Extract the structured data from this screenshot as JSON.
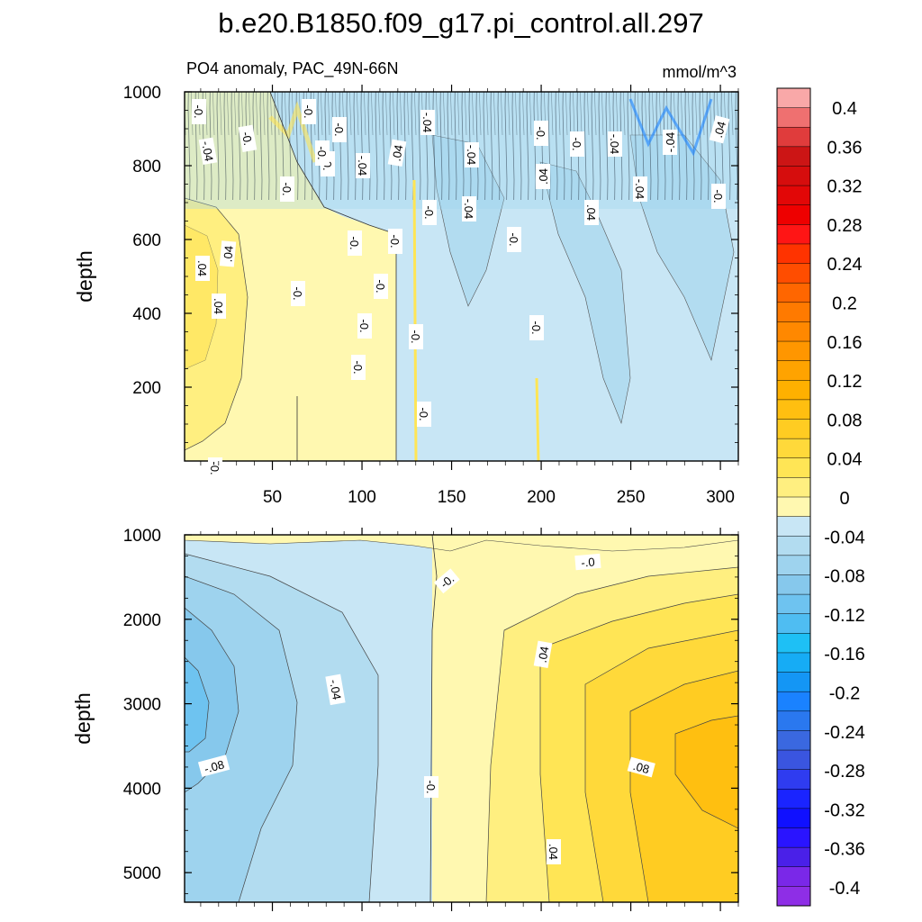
{
  "chart_data": {
    "type": "contour",
    "title": "b.e20.B1850.f09_g17.pi_control.all.297",
    "subtitle_left": "PO4 anomaly, PAC_49N-66N",
    "units": "mmol/m^3",
    "colorbar": {
      "levels": [
        -0.4,
        -0.38,
        -0.36,
        -0.34,
        -0.32,
        -0.3,
        -0.28,
        -0.26,
        -0.24,
        -0.22,
        -0.2,
        -0.18,
        -0.16,
        -0.14,
        -0.12,
        -0.1,
        -0.08,
        -0.06,
        -0.04,
        -0.02,
        0,
        0.02,
        0.04,
        0.06,
        0.08,
        0.1,
        0.12,
        0.14,
        0.16,
        0.18,
        0.2,
        0.22,
        0.24,
        0.26,
        0.28,
        0.3,
        0.32,
        0.34,
        0.36,
        0.38,
        0.4
      ],
      "tick_labels": [
        "0.4",
        "0.36",
        "0.32",
        "0.28",
        "0.24",
        "0.2",
        "0.16",
        "0.12",
        "0.08",
        "0.04",
        "0",
        "-0.04",
        "-0.08",
        "-0.12",
        "-0.16",
        "-0.2",
        "-0.24",
        "-0.28",
        "-0.32",
        "-0.36",
        "-0.4"
      ],
      "colors": [
        "#f9a8a8",
        "#ef7070",
        "#e03c3c",
        "#cc1515",
        "#d60d0d",
        "#e20707",
        "#ee0000",
        "#ff1515",
        "#ff3300",
        "#ff4d00",
        "#ff6600",
        "#ff7a00",
        "#ff8800",
        "#ff9600",
        "#ffa300",
        "#ffb000",
        "#ffbf10",
        "#ffcc22",
        "#ffd93a",
        "#ffe555",
        "#ffef80",
        "#fff8b0",
        "#c8e6f5",
        "#b2dcf0",
        "#9ed3ee",
        "#86c8ec",
        "#6ec3f0",
        "#4fbdf2",
        "#1ec0f5",
        "#16acf5",
        "#1496f5",
        "#1a82ff",
        "#2a78ef",
        "#3a68e0",
        "#3a55e0",
        "#2f3cf0",
        "#1a24ff",
        "#1010ff",
        "#2a14ff",
        "#4a20e8",
        "#7a28e8",
        "#8e2ee6"
      ]
    },
    "panels": [
      {
        "name": "upper",
        "ylabel": "depth",
        "ylim": [
          1000,
          0
        ],
        "yticks": [
          200,
          400,
          600,
          800,
          1000
        ],
        "xlim": [
          1,
          310
        ],
        "xticks": [
          50,
          100,
          150,
          200,
          250,
          300
        ],
        "contour_labels": [
          "-0.",
          "-.04",
          ".04",
          "-.04",
          ".04",
          "-0.",
          ".04"
        ]
      },
      {
        "name": "lower",
        "ylabel": "depth",
        "ylim": [
          1000,
          5350
        ],
        "yticks": [
          1000,
          2000,
          3000,
          4000,
          5000
        ],
        "xlim": [
          1,
          310
        ],
        "contour_labels": [
          "-.08",
          "-.04",
          "-0.",
          "-0.",
          ".04",
          ".08",
          ".04",
          "-.0"
        ]
      }
    ]
  }
}
